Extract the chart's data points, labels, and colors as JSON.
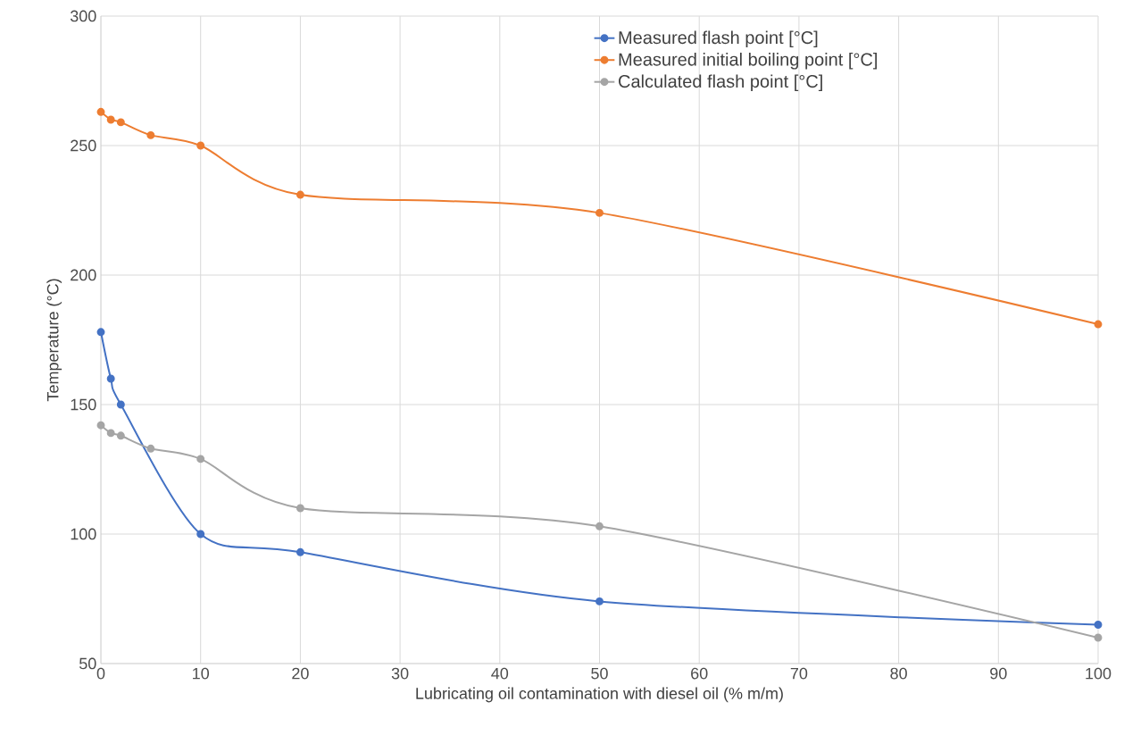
{
  "chart_data": {
    "type": "line",
    "xlabel": "Lubricating oil contamination with diesel oil (% m/m)",
    "ylabel": "Temperature (°C)",
    "x": [
      0,
      1,
      2,
      5,
      10,
      20,
      50,
      100
    ],
    "series": [
      {
        "name": "Measured flash point [°C]",
        "color": "#4472c4",
        "values": [
          178,
          160,
          150,
          null,
          100,
          93,
          74,
          65
        ]
      },
      {
        "name": "Measured initial boiling point  [°C]",
        "color": "#ed7d31",
        "values": [
          263,
          260,
          259,
          254,
          250,
          231,
          224,
          181
        ]
      },
      {
        "name": "Calculated flash point  [°C]",
        "color": "#a5a5a5",
        "values": [
          142,
          139,
          138,
          133,
          129,
          110,
          103,
          60
        ]
      }
    ],
    "xlim": [
      0,
      100
    ],
    "ylim": [
      50,
      300
    ],
    "xticks": [
      0,
      10,
      20,
      30,
      40,
      50,
      60,
      70,
      80,
      90,
      100
    ],
    "yticks": [
      50,
      100,
      150,
      200,
      250,
      300
    ],
    "grid": true,
    "legend": "top right",
    "marker": "circle",
    "line_style": "solid"
  }
}
